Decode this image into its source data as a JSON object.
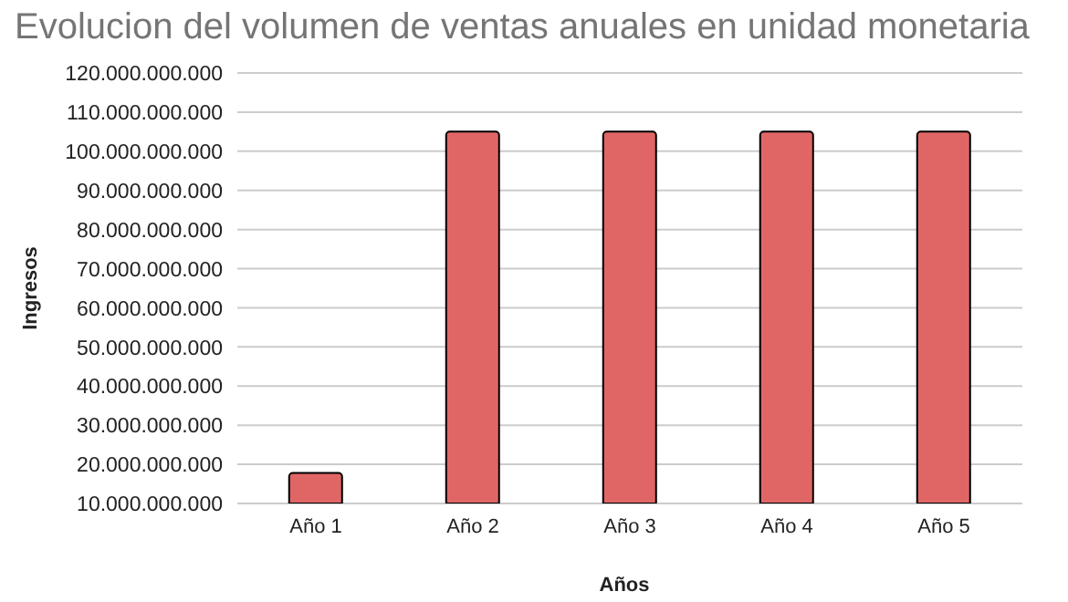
{
  "chart_data": {
    "type": "bar",
    "title": "Evolucion del volumen de ventas anuales en unidad monetaria",
    "xlabel": "Años",
    "ylabel": "Ingresos",
    "categories": [
      "Año 1",
      "Año 2",
      "Año 3",
      "Año 4",
      "Año 5"
    ],
    "values": [
      17800000000,
      105000000000,
      105000000000,
      105000000000,
      105000000000
    ],
    "color": "#e06666",
    "ylim": [
      10000000000,
      120000000000
    ],
    "yticks": [
      {
        "value": 10000000000,
        "label": "10.000.000.000"
      },
      {
        "value": 20000000000,
        "label": "20.000.000.000"
      },
      {
        "value": 30000000000,
        "label": "30.000.000.000"
      },
      {
        "value": 40000000000,
        "label": "40.000.000.000"
      },
      {
        "value": 50000000000,
        "label": "50.000.000.000"
      },
      {
        "value": 60000000000,
        "label": "60.000.000.000"
      },
      {
        "value": 70000000000,
        "label": "70.000.000.000"
      },
      {
        "value": 80000000000,
        "label": "80.000.000.000"
      },
      {
        "value": 90000000000,
        "label": "90.000.000.000"
      },
      {
        "value": 100000000000,
        "label": "100.000.000.000"
      },
      {
        "value": 110000000000,
        "label": "110.000.000.000"
      },
      {
        "value": 120000000000,
        "label": "120.000.000.000"
      }
    ],
    "grid": "y"
  }
}
